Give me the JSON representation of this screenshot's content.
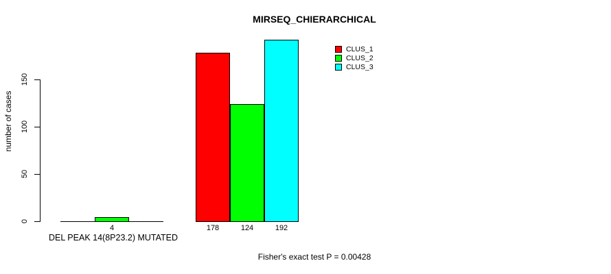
{
  "chart_data": {
    "type": "bar",
    "title": "MIRSEQ_CHIERARCHICAL",
    "ylabel": "number of cases",
    "xlabel": "",
    "yticks": [
      0,
      50,
      100,
      150
    ],
    "ylim": [
      0,
      192
    ],
    "grid": false,
    "categories": [
      "DEL PEAK 14(8P23.2) MUTATED",
      ""
    ],
    "series": [
      {
        "name": "CLUS_1",
        "color": "#FF0000",
        "values": [
          0,
          178
        ]
      },
      {
        "name": "CLUS_2",
        "color": "#00FF00",
        "values": [
          4,
          124
        ]
      },
      {
        "name": "CLUS_3",
        "color": "#00FFFF",
        "values": [
          0,
          192
        ]
      }
    ],
    "bar_value_labels": [
      [
        "",
        "4",
        ""
      ],
      [
        "178",
        "124",
        "192"
      ]
    ],
    "legend": {
      "position": "top-right-of-plot",
      "entries": [
        {
          "label": "CLUS_1",
          "color": "#FF0000"
        },
        {
          "label": "CLUS_2",
          "color": "#00FF00"
        },
        {
          "label": "CLUS_3",
          "color": "#00FFFF"
        }
      ]
    },
    "footnote": "Fisher's exact test P = 0.00428",
    "axis_color": "#000000",
    "bar_border_color": "#000000",
    "background_color": "#FFFFFF"
  }
}
